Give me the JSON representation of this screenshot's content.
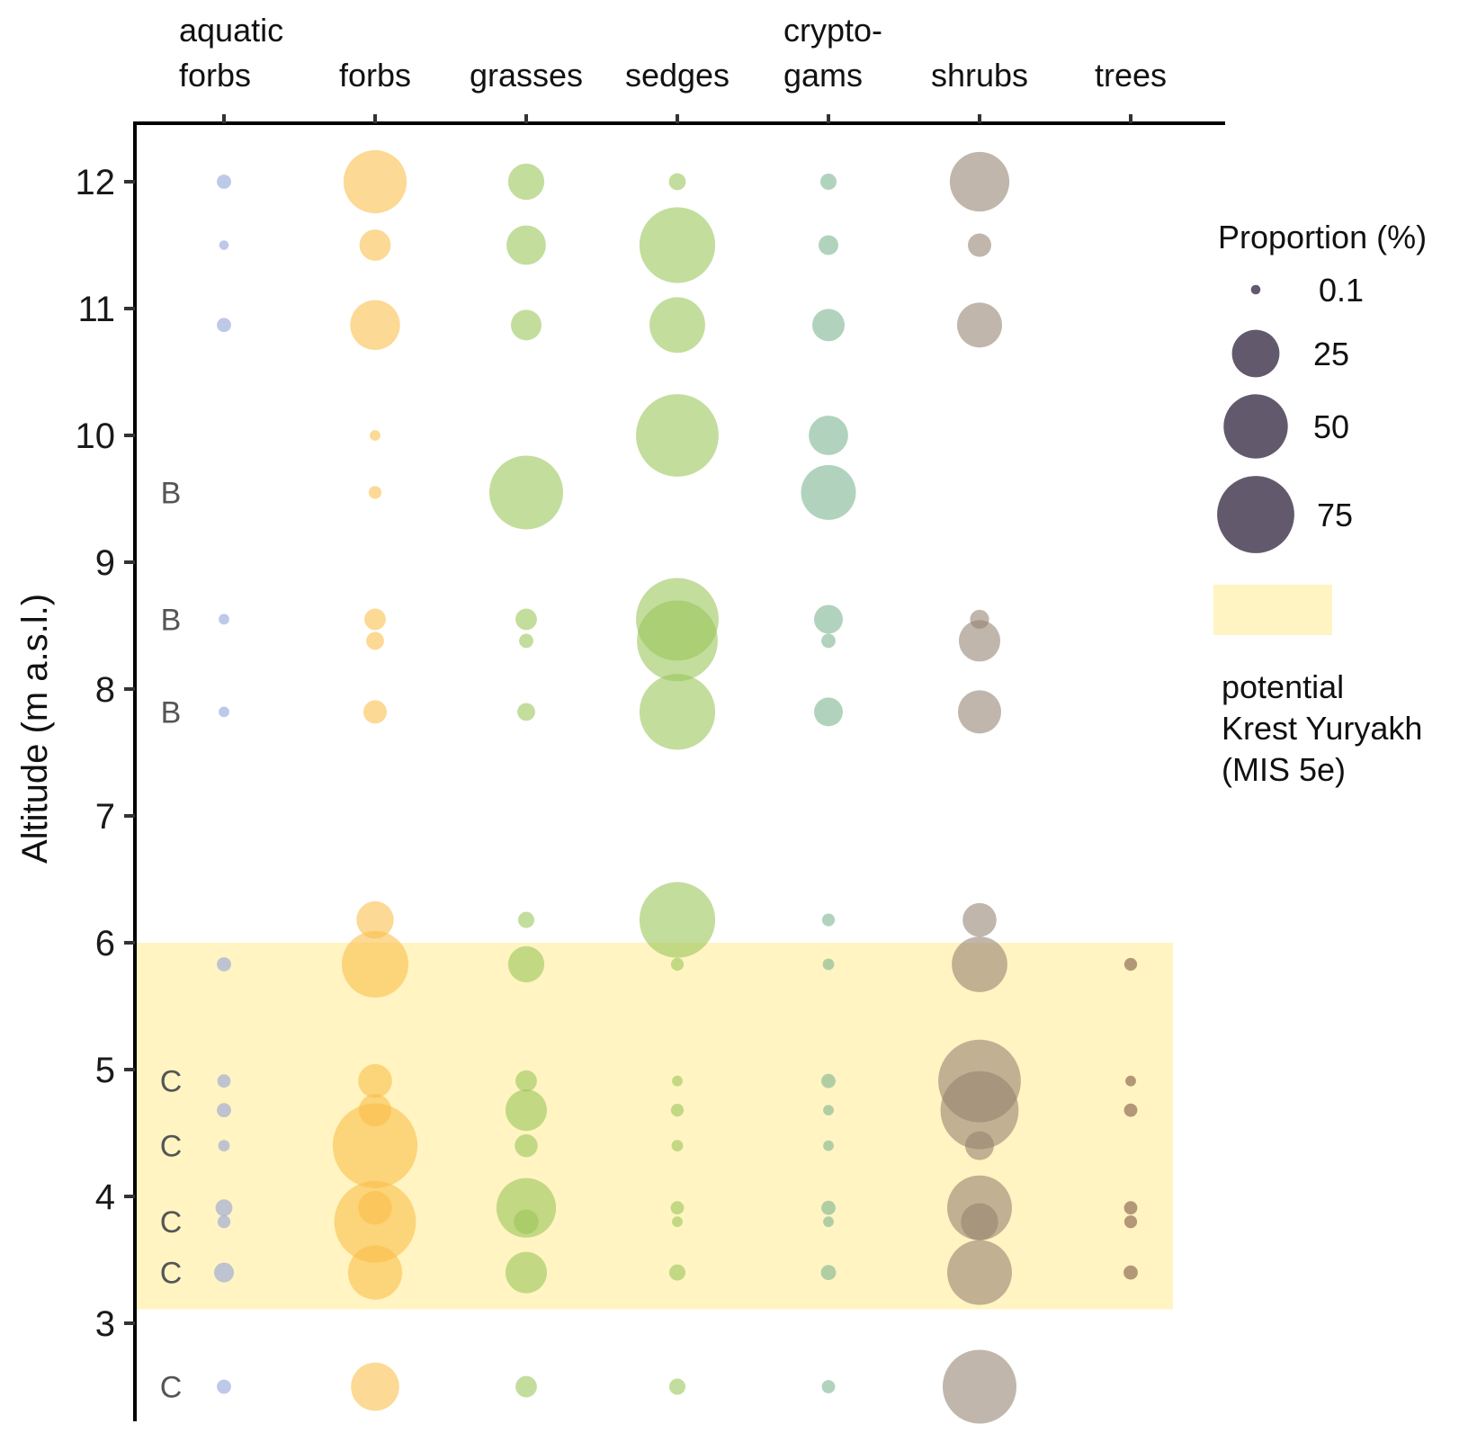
{
  "chart_data": {
    "type": "scatter",
    "subtype": "bubble",
    "title": "",
    "xlabel": "",
    "ylabel": "Altitude (m a.s.l.)",
    "x_axis_position": "top",
    "ylim": [
      2.0,
      12.4
    ],
    "y_ticks": [
      3,
      4,
      5,
      6,
      7,
      8,
      9,
      10,
      11,
      12
    ],
    "grid": false,
    "categories": [
      {
        "key": "aquatic_forbs",
        "label_lines": [
          "aquatic",
          "forbs"
        ],
        "color": "#8fa1d9"
      },
      {
        "key": "forbs",
        "label_lines": [
          "",
          "forbs"
        ],
        "color": "#f9bd47"
      },
      {
        "key": "grasses",
        "label_lines": [
          "",
          "grasses"
        ],
        "color": "#98c556"
      },
      {
        "key": "sedges",
        "label_lines": [
          "",
          "sedges"
        ],
        "color": "#98c556"
      },
      {
        "key": "cryptogams",
        "label_lines": [
          "crypto-",
          "gams"
        ],
        "color": "#78b38d"
      },
      {
        "key": "shrubs",
        "label_lines": [
          "",
          "shrubs"
        ],
        "color": "#958270"
      },
      {
        "key": "trees",
        "label_lines": [
          "",
          "trees"
        ],
        "color": "#7a5640"
      }
    ],
    "altitudes": [
      12.0,
      11.5,
      10.87,
      10.0,
      9.55,
      8.55,
      8.38,
      7.82,
      6.18,
      5.83,
      4.91,
      4.68,
      4.4,
      3.91,
      3.8,
      3.4,
      2.5
    ],
    "series": [
      {
        "name": "aquatic forbs",
        "values": [
          0.8,
          0.1,
          0.8,
          null,
          null,
          0.2,
          null,
          0.2,
          null,
          0.8,
          0.6,
          0.8,
          0.3,
          1.5,
          0.5,
          2.5,
          0.8
        ]
      },
      {
        "name": "forbs",
        "values": [
          48,
          9,
          28,
          0.2,
          0.5,
          3.2,
          1.8,
          4.1,
          14,
          54,
          11,
          10,
          92,
          11,
          85,
          34,
          26
        ]
      },
      {
        "name": "grasses",
        "values": [
          13,
          16,
          8.5,
          null,
          68,
          3.2,
          0.8,
          1.8,
          1.3,
          13,
          3.2,
          18,
          3.8,
          42,
          4.7,
          18,
          3.2
        ]
      },
      {
        "name": "sedges",
        "values": [
          1.5,
          72,
          36,
          87,
          null,
          87,
          83,
          72,
          72,
          0.5,
          0.2,
          0.5,
          0.3,
          0.6,
          0.2,
          1.3,
          1.3
        ]
      },
      {
        "name": "cryptogams",
        "values": [
          1.3,
          2.5,
          9.8,
          16,
          35,
          7.2,
          0.8,
          7.2,
          0.5,
          0.3,
          0.8,
          0.2,
          0.2,
          0.8,
          0.2,
          1.0,
          0.6
        ]
      },
      {
        "name": "shrubs",
        "values": [
          42,
          4.1,
          22,
          null,
          null,
          2.2,
          18,
          20,
          11,
          36,
          87,
          77,
          7.2,
          51,
          14,
          51,
          68
        ]
      },
      {
        "name": "trees",
        "values": [
          null,
          null,
          null,
          null,
          null,
          null,
          null,
          null,
          null,
          0.5,
          0.2,
          0.6,
          null,
          0.6,
          0.5,
          0.8,
          null
        ]
      }
    ],
    "unit_labels": [
      {
        "text": "B",
        "altitude": 9.55
      },
      {
        "text": "B",
        "altitude": 8.55
      },
      {
        "text": "B",
        "altitude": 7.82
      },
      {
        "text": "C",
        "altitude": 4.91
      },
      {
        "text": "C",
        "altitude": 4.4
      },
      {
        "text": "C",
        "altitude": 3.8
      },
      {
        "text": "C",
        "altitude": 3.4
      },
      {
        "text": "C",
        "altitude": 2.5
      }
    ],
    "shaded_band": {
      "y_from": 3.11,
      "y_to": 6.0,
      "color": "#fff4c2",
      "label_lines": [
        "potential",
        "Krest Yuryakh",
        "(MIS 5e)"
      ]
    },
    "size_legend": {
      "title": "Proportion (%)",
      "values": [
        0.1,
        25,
        50,
        75
      ],
      "labels": [
        "0.1",
        "25",
        "50",
        "75"
      ],
      "color": "#625a6c"
    },
    "legend_position": "right"
  }
}
